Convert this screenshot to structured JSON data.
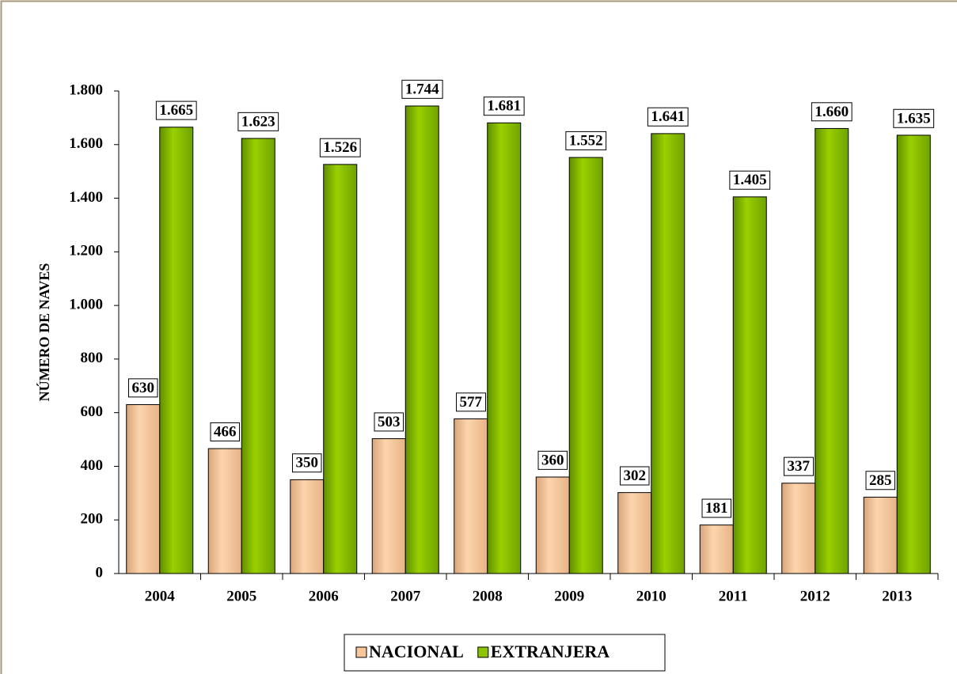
{
  "chart_data": {
    "type": "bar",
    "y_label": "NÚMERO DE NAVES",
    "categories": [
      "2004",
      "2005",
      "2006",
      "2007",
      "2008",
      "2009",
      "2010",
      "2011",
      "2012",
      "2013"
    ],
    "series": [
      {
        "name": "NACIONAL",
        "color": "#f9c79a",
        "values": [
          630,
          466,
          350,
          503,
          577,
          360,
          302,
          181,
          337,
          285
        ]
      },
      {
        "name": "EXTRANJERA",
        "color": "#8cc400",
        "values": [
          1665,
          1623,
          1526,
          1744,
          1681,
          1552,
          1641,
          1405,
          1660,
          1635
        ],
        "value_labels": [
          "1.665",
          "1.623",
          "1.526",
          "1.744",
          "1.681",
          "1.552",
          "1.641",
          "1.405",
          "1.660",
          "1.635"
        ]
      }
    ],
    "ylim": [
      0,
      1800
    ],
    "yticks": [
      0,
      200,
      400,
      600,
      800,
      {
        "value": 1000,
        "label": "1.000"
      },
      {
        "value": 1200,
        "label": "1.200"
      },
      {
        "value": 1400,
        "label": "1.400"
      },
      {
        "value": 1600,
        "label": "1.600"
      },
      {
        "value": 1800,
        "label": "1.800"
      }
    ],
    "legend": "bottom"
  }
}
